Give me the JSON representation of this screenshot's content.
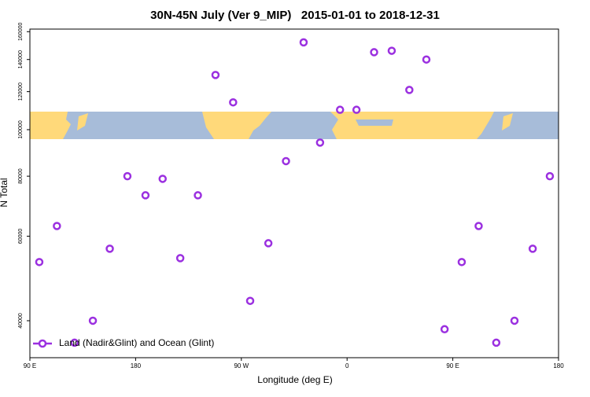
{
  "chart_data": {
    "type": "scatter",
    "title": "30N-45N July (Ver 9_MIP)   2015-01-01 to 2018-12-31",
    "xlabel": "Longitude (deg E)",
    "ylabel": "N Total",
    "xlim": [
      90,
      540
    ],
    "ylim": [
      33500,
      162000
    ],
    "log_y": true,
    "xticks": [
      {
        "value": 90,
        "label": "90 E"
      },
      180,
      {
        "value": 270,
        "label": "90 W"
      },
      {
        "value": 360,
        "label": "0"
      },
      {
        "value": 450,
        "label": "90 E"
      },
      {
        "value": 540,
        "label": "180"
      }
    ],
    "yticks": [
      40000,
      60000,
      80000,
      100000,
      120000,
      140000,
      160000
    ],
    "legend": "bottom-left",
    "series": [
      {
        "name": "Land (Nadir&Glint) and Ocean (Glint)",
        "color": "#9b30e0",
        "x": [
          98,
          113,
          128,
          143.6,
          158,
          173,
          188.4,
          203,
          218,
          233,
          248,
          263,
          277.5,
          293,
          308,
          323,
          337,
          354,
          368,
          383,
          398,
          413,
          427.5,
          443,
          457.6,
          472,
          487,
          502.5,
          518,
          532.6
        ],
        "values": [
          53000,
          63000,
          36000,
          40000,
          56500,
          80000,
          73000,
          79000,
          54000,
          73000,
          130000,
          114000,
          44000,
          58000,
          86000,
          152000,
          94000,
          110000,
          110000,
          145000,
          146000,
          121000,
          140000,
          38400,
          53000,
          63000,
          36000,
          40000,
          56500,
          80000
        ]
      }
    ]
  }
}
